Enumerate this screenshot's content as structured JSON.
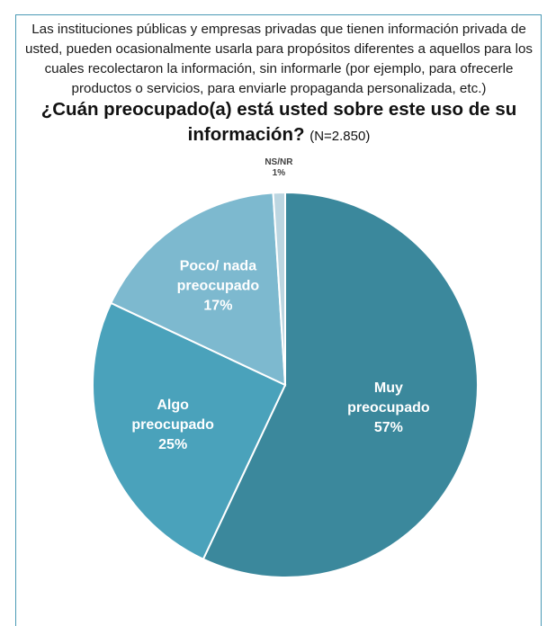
{
  "intro_text": "Las instituciones públicas y empresas privadas que tienen información privada de usted, pueden ocasionalmente usarla para propósitos diferentes a aquellos para los cuales recolectaron la información, sin informarle (por ejemplo, para ofrecerle productos o servicios, para enviarle propaganda personalizada, etc.)",
  "question": "¿Cuán preocupado(a) está usted sobre este uso de su información?",
  "sample_size": "(N=2.850)",
  "chart_data": {
    "type": "pie",
    "title": "¿Cuán preocupado(a) está usted sobre este uso de su información?",
    "slices": [
      {
        "label_lines": [
          "Muy",
          "preocupado"
        ],
        "value": 57,
        "value_label": "57%",
        "color": "#3b889c"
      },
      {
        "label_lines": [
          "Algo",
          "preocupado"
        ],
        "value": 25,
        "value_label": "25%",
        "color": "#4aa2bb"
      },
      {
        "label_lines": [
          "Poco/ nada",
          "preocupado"
        ],
        "value": 17,
        "value_label": "17%",
        "color": "#7db9cf"
      },
      {
        "label_lines": [
          "NS/NR"
        ],
        "value": 1,
        "value_label": "1%",
        "color": "#bcd6e1"
      }
    ]
  }
}
